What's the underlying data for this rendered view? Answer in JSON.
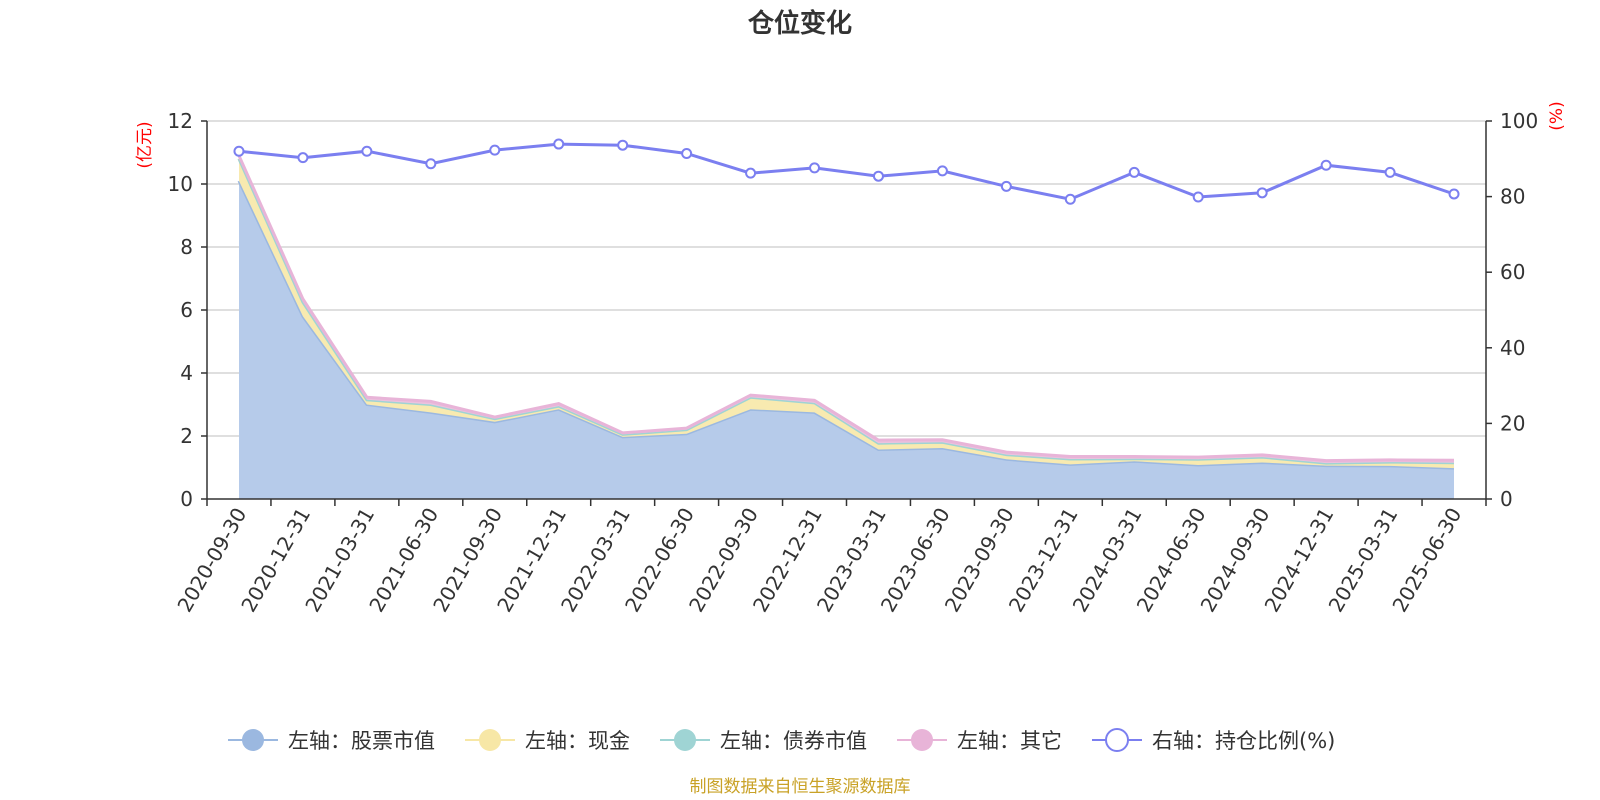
{
  "chart_data": {
    "type": "area",
    "title": "仓位变化",
    "left_axis_unit": "(亿元)",
    "right_axis_unit": "(%)",
    "ylim_left": [
      0,
      12
    ],
    "yticks_left": [
      0,
      2,
      4,
      6,
      8,
      10,
      12
    ],
    "ylim_right": [
      0,
      100
    ],
    "yticks_right": [
      0,
      20,
      40,
      60,
      80,
      100
    ],
    "grid": true,
    "legend_position": "bottom",
    "categories": [
      "2020-09-30",
      "2020-12-31",
      "2021-03-31",
      "2021-06-30",
      "2021-09-30",
      "2021-12-31",
      "2022-03-31",
      "2022-06-30",
      "2022-09-30",
      "2022-12-31",
      "2023-03-31",
      "2023-06-30",
      "2023-09-30",
      "2023-12-31",
      "2024-03-31",
      "2024-06-30",
      "2024-09-30",
      "2024-12-31",
      "2025-03-31",
      "2025-06-30"
    ],
    "series": [
      {
        "name": "左轴：股票市值",
        "axis": "left",
        "stack": true,
        "color": "#9bb8e0",
        "fill": "#b6cbea",
        "values": [
          10.1,
          5.8,
          3.0,
          2.75,
          2.45,
          2.85,
          1.97,
          2.07,
          2.85,
          2.75,
          1.57,
          1.62,
          1.26,
          1.1,
          1.2,
          1.08,
          1.16,
          1.06,
          1.05,
          0.98
        ]
      },
      {
        "name": "左轴：现金",
        "axis": "left",
        "stack": true,
        "color": "#f7e7a6",
        "fill": "#f8eab0",
        "values": [
          0.7,
          0.45,
          0.15,
          0.25,
          0.1,
          0.1,
          0.08,
          0.13,
          0.38,
          0.3,
          0.2,
          0.18,
          0.15,
          0.17,
          0.08,
          0.18,
          0.17,
          0.08,
          0.12,
          0.17
        ]
      },
      {
        "name": "左轴：债券市值",
        "axis": "left",
        "stack": true,
        "color": "#9fd4d4",
        "fill": "#b3dede",
        "values": [
          0,
          0,
          0,
          0,
          0,
          0,
          0,
          0,
          0,
          0,
          0,
          0,
          0,
          0,
          0,
          0,
          0,
          0,
          0,
          0
        ]
      },
      {
        "name": "左轴：其它",
        "axis": "left",
        "stack": true,
        "color": "#e8b4d8",
        "fill": "#ecc2de",
        "values": [
          0.1,
          0.1,
          0.08,
          0.1,
          0.05,
          0.08,
          0.05,
          0.05,
          0.07,
          0.08,
          0.1,
          0.08,
          0.08,
          0.08,
          0.07,
          0.07,
          0.07,
          0.08,
          0.07,
          0.08
        ]
      },
      {
        "name": "右轴：持仓比例(%)",
        "axis": "right",
        "stack": false,
        "color": "#7b7ff0",
        "values": [
          92.0,
          90.3,
          92.0,
          88.7,
          92.3,
          93.9,
          93.6,
          91.4,
          86.2,
          87.6,
          85.4,
          86.8,
          82.7,
          79.3,
          86.4,
          79.9,
          81.0,
          88.3,
          86.4,
          80.7
        ]
      }
    ],
    "source": "制图数据来自恒生聚源数据库"
  }
}
